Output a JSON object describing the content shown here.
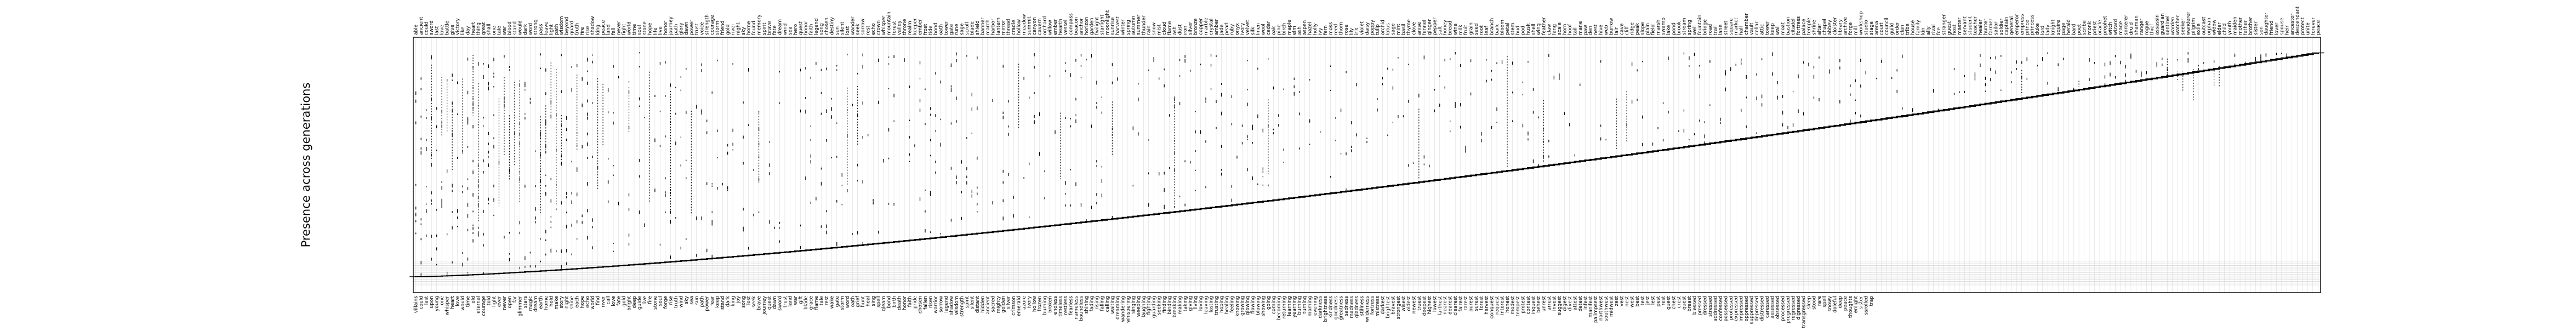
{
  "chart_data": {
    "type": "scatter",
    "ylabel": "Presence across generations",
    "grid": true,
    "top_labels": [
      "able",
      "ancient",
      "could",
      "sword",
      "last",
      "love",
      "battle",
      "give",
      "victory",
      "like",
      "day",
      "heart",
      "thing",
      "great",
      "shall",
      "one",
      "tale",
      "war",
      "blood",
      "stand",
      "would",
      "dark",
      "word",
      "strong",
      "pass",
      "leave",
      "light",
      "path",
      "wisdom",
      "beyond",
      "guard",
      "truth",
      "fire",
      "rise",
      "shadow",
      "king",
      "peace",
      "land",
      "fall",
      "never",
      "fight",
      "world",
      "time",
      "soul",
      "stone",
      "hope",
      "life",
      "live",
      "honor",
      "journey",
      "path",
      "glory",
      "dawn",
      "power",
      "trust",
      "voice",
      "strength",
      "courage",
      "storm",
      "friend",
      "gold",
      "river",
      "night",
      "sky",
      "home",
      "found",
      "memory",
      "spirit",
      "brave",
      "fate",
      "dream",
      "wind",
      "sea",
      "hero",
      "quest",
      "honor",
      "faith",
      "legend",
      "song",
      "chosen",
      "destiny",
      "sun",
      "silent",
      "lost",
      "wander",
      "seek",
      "sorrow",
      "rest",
      "echo",
      "crown",
      "whisper",
      "mountain",
      "forest",
      "valley",
      "throne",
      "realm",
      "keeper",
      "ember",
      "frost",
      "tide",
      "bond",
      "oath",
      "tower",
      "gate",
      "rune",
      "sage",
      "scroll",
      "blade",
      "shield",
      "banner",
      "march",
      "harbor",
      "lantern",
      "mirror",
      "thread",
      "cradle",
      "hollow",
      "meadow",
      "summit",
      "canyon",
      "cavern",
      "orchard",
      "willow",
      "ember",
      "hearth",
      "vessel",
      "compass",
      "beacon",
      "anchor",
      "horizon",
      "garden",
      "twilight",
      "starlight",
      "moonlight",
      "sunrise",
      "harvest",
      "winter",
      "spring",
      "autumn",
      "summer",
      "thunder",
      "rain",
      "snow",
      "mist",
      "cloud",
      "flame",
      "ash",
      "dust",
      "iron",
      "silver",
      "bronze",
      "copper",
      "marble",
      "crystal",
      "amber",
      "jade",
      "pearl",
      "ruby",
      "onyx",
      "ivory",
      "velvet",
      "silk",
      "linen",
      "wool",
      "cedar",
      "oak",
      "pine",
      "birch",
      "maple",
      "elm",
      "ash",
      "aspen",
      "hazel",
      "holly",
      "ivy",
      "fern",
      "moss",
      "reed",
      "thorn",
      "rose",
      "lily",
      "iris",
      "violet",
      "daisy",
      "poppy",
      "tulip",
      "orchid",
      "lotus",
      "sage",
      "mint",
      "basil",
      "thyme",
      "clove",
      "anise",
      "fennel",
      "ginger",
      "pepper",
      "salt",
      "honey",
      "bread",
      "wine",
      "milk",
      "fruit",
      "grain",
      "seed",
      "root",
      "leaf",
      "branch",
      "bark",
      "bloom",
      "petal",
      "stem",
      "bud",
      "pod",
      "husk",
      "shell",
      "wing",
      "feather",
      "claw",
      "fang",
      "scale",
      "horn",
      "hoof",
      "tail",
      "mane",
      "paw",
      "den",
      "nest",
      "hive",
      "web",
      "burrow",
      "lair",
      "cave",
      "cliff",
      "ridge",
      "peak",
      "slope",
      "plain",
      "field",
      "marsh",
      "swamp",
      "lake",
      "pond",
      "brook",
      "stream",
      "spring",
      "well",
      "fountain",
      "bridge",
      "road",
      "trail",
      "lane",
      "street",
      "square",
      "market",
      "hall",
      "chamber",
      "vault",
      "cellar",
      "attic",
      "tower",
      "keep",
      "wall",
      "moat",
      "bastion",
      "citadel",
      "fortress",
      "palace",
      "temple",
      "shrine",
      "altar",
      "chapel",
      "abbey",
      "cloister",
      "library",
      "archive",
      "forge",
      "mill",
      "workshop",
      "studio",
      "stage",
      "arena",
      "court",
      "council",
      "guild",
      "order",
      "clan",
      "tribe",
      "house",
      "family",
      "kin",
      "ally",
      "rival",
      "foe",
      "stranger",
      "guest",
      "host",
      "master",
      "servant",
      "student",
      "teacher",
      "healer",
      "hunter",
      "farmer",
      "sailor",
      "soldier",
      "captain",
      "general",
      "emperor",
      "empress",
      "prince",
      "princess",
      "duke",
      "lord",
      "lady",
      "knight",
      "squire",
      "page",
      "herald",
      "bard",
      "poet",
      "scribe",
      "monk",
      "priest",
      "oracle",
      "prophet",
      "witch",
      "wizard",
      "mage",
      "sorcerer",
      "druid",
      "shaman",
      "ranger",
      "rogue",
      "thief",
      "assassin",
      "guardian",
      "sentinel",
      "warden",
      "watcher",
      "seeker",
      "wanderer",
      "pilgrim",
      "exile",
      "outcast",
      "orphan",
      "widow",
      "elder",
      "child",
      "youth",
      "maiden",
      "mother",
      "father",
      "brother",
      "sister",
      "son",
      "daughter",
      "friend",
      "lover",
      "spouse",
      "heir",
      "ancestor",
      "descendant",
      "protect",
      "unite",
      "forever",
      "peace"
    ],
    "bottom_labels": [
      "villains",
      "could",
      "last",
      "upon",
      "young",
      "one",
      "whisper",
      "heart",
      "love",
      "would",
      "time",
      "old",
      "eternal",
      "courage",
      "told",
      "light",
      "ever",
      "never",
      "open",
      "far",
      "glimmer",
      "stars",
      "magic",
      "dream",
      "earth",
      "home",
      "hold",
      "make",
      "story",
      "night",
      "shine",
      "each",
      "hope",
      "echo",
      "world",
      "find",
      "river",
      "call",
      "love",
      "fate",
      "gold",
      "bright",
      "deep",
      "guide",
      "live",
      "fire",
      "stone",
      "soul",
      "forge",
      "rise",
      "truth",
      "wind",
      "sky",
      "sea",
      "sun",
      "path",
      "power",
      "fear",
      "keep",
      "stand",
      "dark",
      "king",
      "joy",
      "song",
      "lost",
      "seek",
      "brave",
      "journey",
      "quest",
      "dawn",
      "sword",
      "trust",
      "land",
      "war",
      "gift",
      "blade",
      "grace",
      "flame",
      "tale",
      "rest",
      "wake",
      "gate",
      "storm",
      "word",
      "oath",
      "grief",
      "hunt",
      "heal",
      "sing",
      "spell",
      "gleam",
      "bond",
      "birth",
      "death",
      "honor",
      "faith",
      "pride",
      "chosen",
      "fallen",
      "risen",
      "warrior",
      "sorrow",
      "legend",
      "shadow",
      "wisdom",
      "strength",
      "spirit",
      "silent",
      "distant",
      "hidden",
      "ancient",
      "sacred",
      "mighty",
      "golden",
      "silver",
      "crimson",
      "emerald",
      "azure",
      "ivory",
      "hollow",
      "frozen",
      "burning",
      "broken",
      "endless",
      "timeless",
      "restless",
      "fearless",
      "nameless",
      "boundless",
      "shining",
      "fading",
      "rising",
      "falling",
      "calling",
      "waiting",
      "dreaming",
      "wandering",
      "whispering",
      "singing",
      "weeping",
      "laughing",
      "fighting",
      "guarding",
      "seeking",
      "finding",
      "binding",
      "breaking",
      "making",
      "taking",
      "giving",
      "living",
      "loving",
      "leaving",
      "lasting",
      "trusting",
      "hoping",
      "healing",
      "feeling",
      "knowing",
      "growing",
      "glowing",
      "flowing",
      "blowing",
      "showing",
      "going",
      "coming",
      "becoming",
      "returning",
      "learning",
      "yearning",
      "burning",
      "turning",
      "morning",
      "evening",
      "darkness",
      "brightness",
      "kindness",
      "goodness",
      "greatness",
      "sadness",
      "madness",
      "gladness",
      "stillness",
      "wilderness",
      "fortress",
      "mistress",
      "darkest",
      "brightest",
      "bravest",
      "strongest",
      "wisest",
      "oldest",
      "newest",
      "truest",
      "deepest",
      "highest",
      "lowest",
      "farthest",
      "nearest",
      "dearest",
      "clearest",
      "fairest",
      "rarest",
      "purest",
      "surest",
      "forest",
      "harvest",
      "conquest",
      "request",
      "interest",
      "honest",
      "modest",
      "tempest",
      "protest",
      "contest",
      "inquest",
      "behest",
      "unrest",
      "arrest",
      "invest",
      "suggest",
      "digest",
      "divest",
      "attest",
      "detest",
      "infest",
      "manifest",
      "palimpsest",
      "northwest",
      "southwest",
      "midwest",
      "zest",
      "vest",
      "nest",
      "west",
      "best",
      "test",
      "jest",
      "lest",
      "pest",
      "rest",
      "guest",
      "chest",
      "crest",
      "quest",
      "breast",
      "blessed",
      "pressed",
      "dressed",
      "stressed",
      "addressed",
      "confessed",
      "possessed",
      "professed",
      "expressed",
      "impressed",
      "oppressed",
      "suppressed",
      "depressed",
      "distressed",
      "caressed",
      "assessed",
      "obsessed",
      "processed",
      "progressed",
      "regressed",
      "digressed",
      "transgressed",
      "sleep",
      "stood",
      "rare",
      "spell",
      "snowy",
      "doleful",
      "deep",
      "peace",
      "thoughts",
      "enlight",
      "sister",
      "ssrolled",
      "trap"
    ],
    "n_rows": 13
  }
}
